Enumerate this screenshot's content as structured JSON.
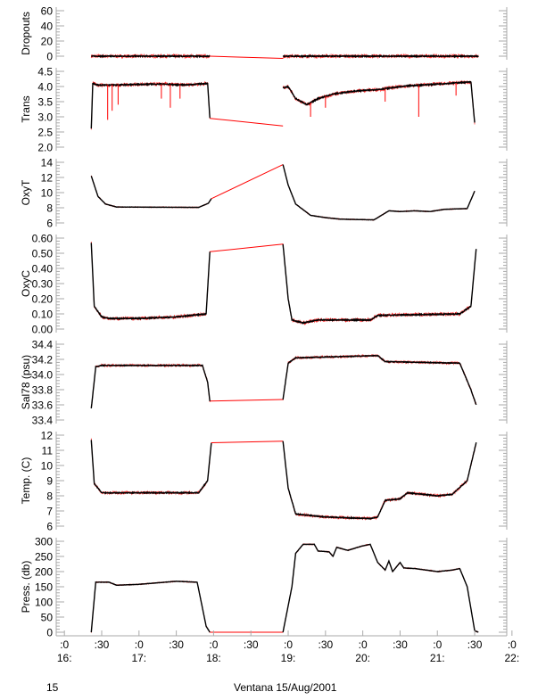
{
  "chart_data": {
    "type": "line",
    "title": "",
    "xlabel": "Ventana 15/Aug/2001",
    "day_label": "15",
    "xlim_hours": [
      15.89,
      21.93
    ],
    "x_ticks": [
      {
        "h": 16.0,
        "top": ":0",
        "bottom": "16:"
      },
      {
        "h": 16.5,
        "top": ":30",
        "bottom": ""
      },
      {
        "h": 17.0,
        "top": ":0",
        "bottom": "17:"
      },
      {
        "h": 17.5,
        "top": ":30",
        "bottom": ""
      },
      {
        "h": 18.0,
        "top": ":0",
        "bottom": "18:"
      },
      {
        "h": 18.5,
        "top": ":30",
        "bottom": ""
      },
      {
        "h": 19.0,
        "top": ":0",
        "bottom": "19:"
      },
      {
        "h": 19.5,
        "top": ":30",
        "bottom": ""
      },
      {
        "h": 20.0,
        "top": ":0",
        "bottom": "20:"
      },
      {
        "h": 20.5,
        "top": ":30",
        "bottom": ""
      },
      {
        "h": 21.0,
        "top": ":0",
        "bottom": "21:"
      },
      {
        "h": 21.5,
        "top": ":30",
        "bottom": ""
      },
      {
        "h": 22.0,
        "top": ":0",
        "bottom": "22:"
      }
    ],
    "colors": {
      "data": "#000000",
      "raw": "#ff0000",
      "axis": "#aaaaaa"
    },
    "panels": [
      {
        "name": "dropouts",
        "ylabel": "Dropouts",
        "ylim": [
          -5,
          65
        ],
        "ticks": [
          0,
          20,
          40,
          60
        ],
        "tick_labels": [
          "0",
          "20",
          "40",
          "60"
        ],
        "seg1": [
          [
            16.36,
            0
          ],
          [
            17.95,
            0
          ]
        ],
        "gap": [
          [
            17.95,
            0
          ],
          [
            18.93,
            -3
          ]
        ],
        "seg2": [
          [
            18.93,
            0
          ],
          [
            21.55,
            0
          ]
        ],
        "noise": 1.2
      },
      {
        "name": "trans",
        "ylabel": "Trans",
        "ylim": [
          2.0,
          4.5
        ],
        "ticks": [
          2.0,
          2.5,
          3.0,
          3.5,
          4.0,
          4.5
        ],
        "tick_labels": [
          "2.0",
          "2.5",
          "3.0",
          "3.5",
          "4.0",
          "4.5"
        ],
        "seg1": [
          [
            16.36,
            2.6
          ],
          [
            16.38,
            4.1
          ],
          [
            16.45,
            4.05
          ],
          [
            16.7,
            4.05
          ],
          [
            17.0,
            4.07
          ],
          [
            17.3,
            4.08
          ],
          [
            17.6,
            4.05
          ],
          [
            17.92,
            4.1
          ],
          [
            17.95,
            2.95
          ]
        ],
        "gap": [
          [
            17.95,
            2.95
          ],
          [
            18.93,
            2.7
          ]
        ],
        "seg2": [
          [
            18.93,
            3.95
          ],
          [
            19.0,
            4.0
          ],
          [
            19.1,
            3.6
          ],
          [
            19.25,
            3.4
          ],
          [
            19.4,
            3.6
          ],
          [
            19.6,
            3.75
          ],
          [
            19.9,
            3.85
          ],
          [
            20.2,
            3.9
          ],
          [
            20.6,
            4.02
          ],
          [
            21.0,
            4.08
          ],
          [
            21.45,
            4.15
          ],
          [
            21.5,
            2.8
          ]
        ],
        "spikes": [
          [
            16.58,
            2.9
          ],
          [
            16.64,
            3.2
          ],
          [
            16.72,
            3.4
          ],
          [
            17.3,
            3.6
          ],
          [
            17.42,
            3.3
          ],
          [
            17.55,
            3.6
          ],
          [
            19.3,
            3.0
          ],
          [
            19.5,
            3.3
          ],
          [
            20.3,
            3.5
          ],
          [
            20.75,
            3.0
          ],
          [
            21.25,
            3.7
          ]
        ],
        "noise": 0.03
      },
      {
        "name": "oxyt",
        "ylabel": "OxyT",
        "ylim": [
          6,
          14
        ],
        "ticks": [
          6,
          8,
          10,
          12,
          14
        ],
        "tick_labels": [
          "6",
          "8",
          "10",
          "12",
          "14"
        ],
        "seg1": [
          [
            16.36,
            12.2
          ],
          [
            16.45,
            9.5
          ],
          [
            16.55,
            8.5
          ],
          [
            16.7,
            8.1
          ],
          [
            17.8,
            8.05
          ],
          [
            17.93,
            8.6
          ],
          [
            17.97,
            9.2
          ]
        ],
        "gap": [
          [
            17.97,
            9.2
          ],
          [
            18.93,
            13.7
          ]
        ],
        "seg2": [
          [
            18.93,
            13.7
          ],
          [
            19.0,
            11
          ],
          [
            19.1,
            8.5
          ],
          [
            19.3,
            7.0
          ],
          [
            19.5,
            6.7
          ],
          [
            19.7,
            6.5
          ],
          [
            20.15,
            6.4
          ],
          [
            20.25,
            7.0
          ],
          [
            20.35,
            7.6
          ],
          [
            20.5,
            7.5
          ],
          [
            20.7,
            7.6
          ],
          [
            20.9,
            7.5
          ],
          [
            21.1,
            7.8
          ],
          [
            21.4,
            7.9
          ],
          [
            21.5,
            10.2
          ]
        ],
        "noise": 0.03
      },
      {
        "name": "oxyc",
        "ylabel": "OxyC",
        "ylim": [
          0,
          0.6
        ],
        "ticks": [
          0,
          0.1,
          0.2,
          0.3,
          0.4,
          0.5,
          0.6
        ],
        "tick_labels": [
          "0.00",
          "0.10",
          "0.20",
          "0.30",
          "0.40",
          "0.50",
          "0.60"
        ],
        "seg1": [
          [
            16.36,
            0.57
          ],
          [
            16.4,
            0.15
          ],
          [
            16.5,
            0.08
          ],
          [
            16.6,
            0.07
          ],
          [
            17.0,
            0.07
          ],
          [
            17.5,
            0.08
          ],
          [
            17.9,
            0.1
          ],
          [
            17.95,
            0.51
          ]
        ],
        "gap": [
          [
            17.95,
            0.51
          ],
          [
            18.93,
            0.56
          ]
        ],
        "seg2": [
          [
            18.93,
            0.56
          ],
          [
            19.0,
            0.2
          ],
          [
            19.05,
            0.06
          ],
          [
            19.2,
            0.04
          ],
          [
            19.4,
            0.06
          ],
          [
            20.1,
            0.06
          ],
          [
            20.2,
            0.09
          ],
          [
            21.3,
            0.1
          ],
          [
            21.45,
            0.15
          ],
          [
            21.52,
            0.53
          ]
        ],
        "noise": 0.006
      },
      {
        "name": "sal78",
        "ylabel": "Sal78 (psu)",
        "ylim": [
          33.4,
          34.4
        ],
        "ticks": [
          33.4,
          33.6,
          33.8,
          34.0,
          34.2,
          34.4
        ],
        "tick_labels": [
          "33.4",
          "33.6",
          "33.8",
          "34.0",
          "34.2",
          "34.4"
        ],
        "seg1": [
          [
            16.36,
            33.55
          ],
          [
            16.42,
            34.1
          ],
          [
            16.5,
            34.12
          ],
          [
            17.85,
            34.12
          ],
          [
            17.92,
            33.9
          ],
          [
            17.95,
            33.65
          ]
        ],
        "gap": [
          [
            17.95,
            33.65
          ],
          [
            18.93,
            33.67
          ]
        ],
        "seg2": [
          [
            18.93,
            33.67
          ],
          [
            19.0,
            34.15
          ],
          [
            19.1,
            34.22
          ],
          [
            20.2,
            34.25
          ],
          [
            20.3,
            34.17
          ],
          [
            21.3,
            34.15
          ],
          [
            21.45,
            33.8
          ],
          [
            21.52,
            33.6
          ]
        ],
        "noise": 0.008
      },
      {
        "name": "temp",
        "ylabel": "Temp. (C)",
        "ylim": [
          6,
          12
        ],
        "ticks": [
          6,
          7,
          8,
          9,
          10,
          11,
          12
        ],
        "tick_labels": [
          "6",
          "7",
          "8",
          "9",
          "10",
          "11",
          "12"
        ],
        "seg1": [
          [
            16.36,
            11.7
          ],
          [
            16.4,
            8.8
          ],
          [
            16.5,
            8.2
          ],
          [
            17.8,
            8.2
          ],
          [
            17.92,
            9.0
          ],
          [
            17.97,
            11.5
          ]
        ],
        "gap": [
          [
            17.97,
            11.5
          ],
          [
            18.93,
            11.6
          ]
        ],
        "seg2": [
          [
            18.93,
            11.6
          ],
          [
            19.0,
            8.5
          ],
          [
            19.1,
            6.8
          ],
          [
            19.5,
            6.6
          ],
          [
            20.1,
            6.5
          ],
          [
            20.2,
            6.6
          ],
          [
            20.3,
            7.7
          ],
          [
            20.5,
            7.8
          ],
          [
            20.6,
            8.2
          ],
          [
            21.0,
            8.0
          ],
          [
            21.2,
            8.1
          ],
          [
            21.4,
            9.0
          ],
          [
            21.52,
            11.5
          ]
        ],
        "noise": 0.05
      },
      {
        "name": "press",
        "ylabel": "Press. (db)",
        "ylim": [
          -10,
          300
        ],
        "ticks": [
          0,
          50,
          100,
          150,
          200,
          250,
          300
        ],
        "tick_labels": [
          "0",
          "50",
          "100",
          "150",
          "200",
          "250",
          "300"
        ],
        "seg1": [
          [
            16.36,
            0
          ],
          [
            16.42,
            165
          ],
          [
            16.6,
            165
          ],
          [
            16.7,
            155
          ],
          [
            17.0,
            158
          ],
          [
            17.5,
            168
          ],
          [
            17.78,
            165
          ],
          [
            17.9,
            20
          ],
          [
            17.95,
            0
          ]
        ],
        "gap": [
          [
            17.95,
            0
          ],
          [
            18.93,
            0
          ]
        ],
        "seg2": [
          [
            18.93,
            0
          ],
          [
            19.05,
            150
          ],
          [
            19.1,
            260
          ],
          [
            19.2,
            290
          ],
          [
            19.35,
            290
          ],
          [
            19.4,
            268
          ],
          [
            19.55,
            265
          ],
          [
            19.6,
            250
          ],
          [
            19.65,
            280
          ],
          [
            19.8,
            270
          ],
          [
            20.0,
            285
          ],
          [
            20.1,
            290
          ],
          [
            20.2,
            230
          ],
          [
            20.3,
            205
          ],
          [
            20.35,
            235
          ],
          [
            20.4,
            200
          ],
          [
            20.5,
            230
          ],
          [
            20.55,
            212
          ],
          [
            20.7,
            210
          ],
          [
            21.0,
            200
          ],
          [
            21.2,
            205
          ],
          [
            21.3,
            210
          ],
          [
            21.4,
            150
          ],
          [
            21.5,
            5
          ],
          [
            21.55,
            0
          ]
        ],
        "noise": 0.8
      }
    ]
  }
}
